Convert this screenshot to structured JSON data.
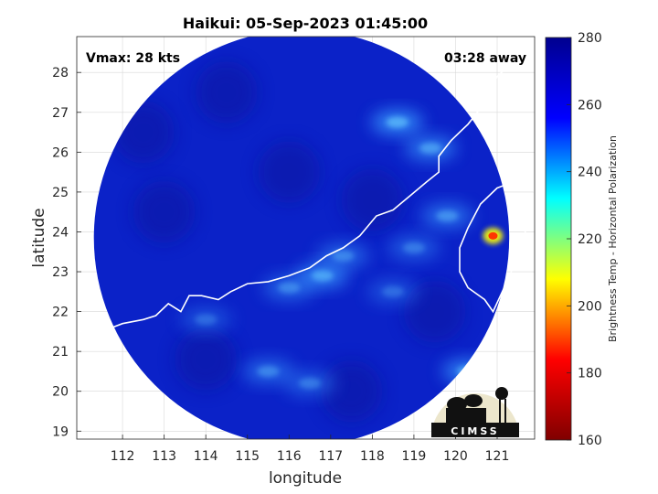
{
  "chart_data": {
    "type": "heatmap",
    "title": "Haikui: 05-Sep-2023 01:45:00",
    "xlabel": "longitude",
    "ylabel": "latitude",
    "xlim": [
      110.9,
      121.9
    ],
    "ylim": [
      18.8,
      28.9
    ],
    "xticks": [
      112,
      113,
      114,
      115,
      116,
      117,
      118,
      119,
      120,
      121
    ],
    "yticks": [
      19,
      20,
      21,
      22,
      23,
      24,
      25,
      26,
      27,
      28
    ],
    "grid": true,
    "annotations": {
      "vmax": "Vmax: 28 kts",
      "time_offset": "03:28 away"
    },
    "colorbar": {
      "label": "Brightness Temp - Horizontal Polarization",
      "min": 160,
      "max": 280,
      "ticks": [
        160,
        180,
        200,
        220,
        240,
        260,
        280
      ],
      "colors": [
        "#800000",
        "#ff0000",
        "#ffff00",
        "#00ffff",
        "#0000ff",
        "#00008f"
      ]
    },
    "swath": {
      "center_lon": 116.3,
      "center_lat": 23.85,
      "radius_deg": 5.1
    },
    "warm_features": [
      {
        "lon": 118.6,
        "lat": 26.75,
        "intensity": 0.55
      },
      {
        "lon": 119.4,
        "lat": 26.1,
        "intensity": 0.45
      },
      {
        "lon": 119.8,
        "lat": 24.4,
        "intensity": 0.4
      },
      {
        "lon": 116.8,
        "lat": 22.9,
        "intensity": 0.5
      },
      {
        "lon": 116.0,
        "lat": 22.6,
        "intensity": 0.35
      },
      {
        "lon": 117.3,
        "lat": 23.4,
        "intensity": 0.35
      },
      {
        "lon": 115.5,
        "lat": 20.5,
        "intensity": 0.35
      },
      {
        "lon": 116.5,
        "lat": 20.2,
        "intensity": 0.3
      },
      {
        "lon": 120.3,
        "lat": 20.5,
        "intensity": 0.5
      },
      {
        "lon": 114.0,
        "lat": 21.8,
        "intensity": 0.25
      },
      {
        "lon": 118.5,
        "lat": 22.5,
        "intensity": 0.25
      },
      {
        "lon": 119.0,
        "lat": 23.6,
        "intensity": 0.3
      }
    ],
    "hotspot": {
      "lon": 120.9,
      "lat": 23.9,
      "temp": 195
    },
    "logo_text": "CIMSS"
  }
}
